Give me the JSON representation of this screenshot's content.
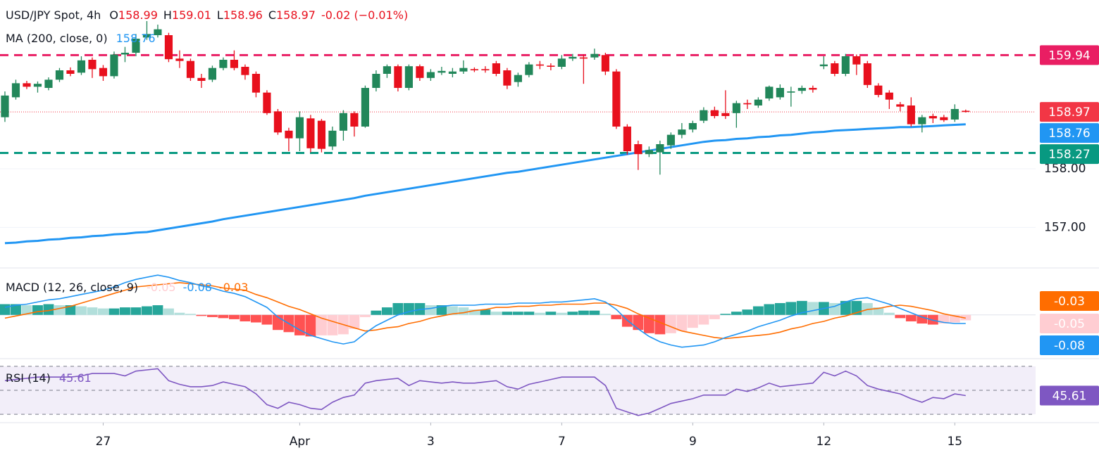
{
  "chart_data": [
    {
      "type": "candlestick",
      "title": "USD/JPY Spot, 4h",
      "ohlc_labels": [
        "O",
        "H",
        "L",
        "C"
      ],
      "change": "-0.02 (−0.01%)",
      "up_color": "#22875a",
      "down_color": "#e8101d",
      "xlim": [
        -0.45,
        94.4
      ],
      "xticks": [
        {
          "value": 9,
          "label": "27"
        },
        {
          "value": 27,
          "label": "Apr"
        },
        {
          "value": 39,
          "label": "3"
        },
        {
          "value": 51,
          "label": "7"
        },
        {
          "value": 63,
          "label": "9"
        },
        {
          "value": 75,
          "label": "12"
        },
        {
          "value": 87,
          "label": "15"
        }
      ],
      "ylim": [
        156.32,
        160.88
      ],
      "yticks": [
        {
          "value": 157,
          "label": "157.00"
        },
        {
          "value": 158,
          "label": "158.00"
        }
      ],
      "grid": true,
      "open": [
        158.88,
        159.22,
        159.46,
        159.4,
        159.38,
        159.52,
        159.68,
        159.64,
        159.86,
        159.72,
        159.58,
        159.95,
        159.98,
        160.24,
        160.28,
        160.28,
        159.88,
        159.84,
        159.55,
        159.52,
        159.72,
        159.86,
        159.74,
        159.62,
        159.3,
        158.98,
        158.65,
        158.52,
        158.86,
        158.82,
        158.38,
        158.65,
        158.95,
        158.72,
        159.38,
        159.62,
        159.75,
        159.38,
        159.75,
        159.55,
        159.64,
        159.62,
        159.66,
        159.7,
        159.7,
        159.8,
        159.68,
        159.48,
        159.6,
        159.78,
        159.76,
        159.74,
        159.88,
        159.9,
        159.9,
        159.94,
        159.66,
        158.72,
        158.42,
        158.25,
        158.28,
        158.4,
        158.58,
        158.67,
        158.82,
        159.0,
        158.95,
        158.95,
        159.12,
        159.08,
        159.2,
        159.22,
        159.3,
        159.33,
        159.38,
        159.75,
        159.8,
        159.62,
        159.92,
        159.8,
        159.42,
        159.3,
        159.1,
        159.08,
        158.76,
        158.9,
        158.88,
        158.84,
        158.99
      ],
      "high": [
        159.32,
        159.52,
        159.5,
        159.49,
        159.56,
        159.72,
        159.73,
        159.92,
        159.9,
        159.77,
        160.0,
        160.08,
        160.3,
        160.52,
        160.46,
        160.32,
        160.02,
        159.88,
        159.62,
        159.76,
        159.9,
        160.02,
        159.78,
        159.66,
        159.34,
        159.02,
        158.7,
        158.98,
        158.92,
        158.85,
        158.72,
        159.0,
        158.98,
        159.42,
        159.68,
        159.78,
        159.78,
        159.78,
        159.78,
        159.7,
        159.74,
        159.72,
        159.85,
        159.73,
        159.75,
        159.84,
        159.72,
        159.64,
        159.82,
        159.84,
        159.8,
        159.94,
        159.96,
        159.95,
        160.05,
        159.98,
        159.7,
        158.76,
        158.48,
        158.38,
        158.48,
        158.62,
        158.78,
        158.82,
        159.05,
        159.06,
        159.34,
        159.16,
        159.18,
        159.22,
        159.42,
        159.44,
        159.4,
        159.42,
        159.42,
        159.92,
        159.84,
        159.96,
        159.95,
        159.84,
        159.46,
        159.34,
        159.14,
        159.22,
        158.92,
        158.94,
        158.92,
        159.1,
        159.01
      ],
      "low": [
        158.8,
        159.18,
        159.36,
        159.3,
        159.34,
        159.48,
        159.58,
        159.6,
        159.55,
        159.5,
        159.54,
        159.82,
        159.92,
        160.2,
        160.24,
        159.82,
        159.72,
        159.5,
        159.38,
        159.48,
        159.68,
        159.68,
        159.52,
        159.22,
        158.92,
        158.58,
        158.3,
        158.3,
        158.28,
        158.28,
        158.32,
        158.48,
        158.55,
        158.7,
        159.32,
        159.55,
        159.32,
        159.34,
        159.5,
        159.5,
        159.6,
        159.56,
        159.62,
        159.65,
        159.64,
        159.58,
        159.36,
        159.4,
        159.56,
        159.7,
        159.68,
        159.7,
        159.84,
        159.45,
        159.86,
        159.6,
        158.68,
        158.24,
        157.98,
        158.2,
        157.9,
        158.34,
        158.52,
        158.62,
        158.78,
        158.86,
        158.85,
        158.7,
        159.02,
        159.04,
        159.16,
        159.18,
        159.06,
        159.28,
        159.3,
        159.7,
        159.58,
        159.58,
        159.6,
        159.38,
        159.22,
        159.02,
        158.98,
        158.72,
        158.62,
        158.78,
        158.8,
        158.8,
        158.96
      ],
      "close": [
        159.25,
        159.46,
        159.4,
        159.45,
        159.52,
        159.68,
        159.62,
        159.85,
        159.7,
        159.58,
        159.95,
        159.98,
        160.22,
        160.3,
        160.38,
        159.87,
        159.84,
        159.55,
        159.5,
        159.72,
        159.86,
        159.72,
        159.6,
        159.3,
        158.95,
        158.62,
        158.52,
        158.88,
        158.35,
        158.34,
        158.65,
        158.95,
        158.72,
        159.38,
        159.62,
        159.75,
        159.38,
        159.75,
        159.55,
        159.65,
        159.67,
        159.66,
        159.72,
        159.68,
        159.68,
        159.62,
        159.42,
        159.6,
        159.78,
        159.76,
        159.74,
        159.88,
        159.91,
        159.88,
        159.96,
        159.66,
        158.72,
        158.3,
        158.25,
        158.32,
        158.42,
        158.58,
        158.67,
        158.78,
        159.0,
        158.9,
        158.9,
        159.12,
        159.1,
        159.18,
        159.4,
        159.38,
        159.32,
        159.38,
        159.35,
        159.78,
        159.62,
        159.92,
        159.78,
        159.43,
        159.26,
        159.18,
        159.06,
        158.76,
        158.88,
        158.86,
        158.83,
        159.02,
        158.97
      ],
      "ma": {
        "name": "MA (200, close, 0)",
        "color": "#2196f3",
        "values": [
          156.73,
          156.74,
          156.76,
          156.77,
          156.79,
          156.8,
          156.82,
          156.83,
          156.85,
          156.86,
          156.88,
          156.89,
          156.91,
          156.92,
          156.95,
          156.98,
          157.01,
          157.04,
          157.07,
          157.1,
          157.14,
          157.17,
          157.2,
          157.23,
          157.26,
          157.29,
          157.32,
          157.35,
          157.38,
          157.41,
          157.44,
          157.47,
          157.5,
          157.54,
          157.57,
          157.6,
          157.63,
          157.66,
          157.69,
          157.72,
          157.75,
          157.78,
          157.81,
          157.84,
          157.87,
          157.9,
          157.93,
          157.95,
          157.98,
          158.01,
          158.04,
          158.07,
          158.1,
          158.13,
          158.16,
          158.19,
          158.22,
          158.25,
          158.28,
          158.31,
          158.34,
          158.37,
          158.4,
          158.43,
          158.46,
          158.48,
          158.49,
          158.51,
          158.52,
          158.54,
          158.55,
          158.57,
          158.58,
          158.6,
          158.62,
          158.63,
          158.65,
          158.66,
          158.67,
          158.68,
          158.69,
          158.7,
          158.71,
          158.71,
          158.72,
          158.73,
          158.74,
          158.75,
          158.76
        ]
      },
      "levels": [
        {
          "value": 159.94,
          "color": "#e91e63",
          "style": "dashed"
        },
        {
          "value": 158.97,
          "color": "#f23645",
          "style": "dotted"
        },
        {
          "value": 158.27,
          "color": "#089981",
          "style": "dashed"
        }
      ]
    },
    {
      "type": "macd",
      "name": "MACD (12, 26, close, 9)",
      "ylim": [
        -0.4,
        0.43
      ],
      "histogram": {
        "colors": {
          "pos_up": "#26a69a",
          "pos_down": "#b2dfdb",
          "neg_down": "#ff5252",
          "neg_up": "#ffcdd2"
        },
        "label_color": "#ffcdd2",
        "label_text_color": "#131722",
        "values": [
          0.1,
          0.1,
          0.09,
          0.09,
          0.1,
          0.09,
          0.09,
          0.08,
          0.07,
          0.06,
          0.06,
          0.07,
          0.07,
          0.08,
          0.09,
          0.06,
          0.02,
          0.01,
          -0.01,
          -0.02,
          -0.03,
          -0.04,
          -0.06,
          -0.07,
          -0.09,
          -0.14,
          -0.16,
          -0.19,
          -0.2,
          -0.19,
          -0.19,
          -0.18,
          -0.13,
          -0.02,
          0.04,
          0.07,
          0.11,
          0.11,
          0.11,
          0.09,
          0.09,
          0.08,
          0.07,
          0.05,
          0.05,
          0.03,
          0.03,
          0.03,
          0.03,
          0.02,
          0.03,
          0.02,
          0.03,
          0.04,
          0.04,
          0.01,
          -0.04,
          -0.11,
          -0.14,
          -0.17,
          -0.18,
          -0.17,
          -0.15,
          -0.12,
          -0.09,
          -0.04,
          0.01,
          0.03,
          0.05,
          0.08,
          0.1,
          0.11,
          0.12,
          0.13,
          0.12,
          0.12,
          0.11,
          0.13,
          0.13,
          0.11,
          0.07,
          0.02,
          -0.03,
          -0.06,
          -0.08,
          -0.09,
          -0.08,
          -0.07,
          -0.05
        ]
      },
      "macd": {
        "color": "#2196f3",
        "values": [
          0.07,
          0.09,
          0.1,
          0.12,
          0.14,
          0.15,
          0.17,
          0.19,
          0.21,
          0.23,
          0.26,
          0.3,
          0.33,
          0.35,
          0.37,
          0.35,
          0.32,
          0.3,
          0.27,
          0.25,
          0.22,
          0.2,
          0.17,
          0.12,
          0.07,
          -0.02,
          -0.08,
          -0.14,
          -0.19,
          -0.22,
          -0.25,
          -0.27,
          -0.25,
          -0.17,
          -0.1,
          -0.05,
          0.0,
          0.03,
          0.05,
          0.06,
          0.08,
          0.09,
          0.09,
          0.09,
          0.1,
          0.1,
          0.1,
          0.11,
          0.11,
          0.11,
          0.12,
          0.12,
          0.13,
          0.14,
          0.15,
          0.12,
          0.05,
          -0.05,
          -0.13,
          -0.2,
          -0.25,
          -0.28,
          -0.3,
          -0.29,
          -0.28,
          -0.25,
          -0.21,
          -0.18,
          -0.15,
          -0.11,
          -0.08,
          -0.05,
          -0.01,
          0.02,
          0.04,
          0.06,
          0.08,
          0.12,
          0.15,
          0.16,
          0.13,
          0.1,
          0.06,
          0.02,
          -0.02,
          -0.05,
          -0.07,
          -0.08,
          -0.08
        ]
      },
      "signal": {
        "color": "#ff6d00",
        "values": [
          -0.03,
          -0.01,
          0.01,
          0.03,
          0.04,
          0.06,
          0.08,
          0.11,
          0.14,
          0.17,
          0.2,
          0.23,
          0.26,
          0.27,
          0.28,
          0.29,
          0.3,
          0.29,
          0.28,
          0.27,
          0.25,
          0.24,
          0.23,
          0.19,
          0.16,
          0.12,
          0.08,
          0.05,
          0.01,
          -0.03,
          -0.06,
          -0.09,
          -0.12,
          -0.15,
          -0.14,
          -0.12,
          -0.11,
          -0.08,
          -0.06,
          -0.03,
          -0.01,
          0.01,
          0.02,
          0.04,
          0.05,
          0.07,
          0.07,
          0.08,
          0.08,
          0.09,
          0.09,
          0.1,
          0.1,
          0.1,
          0.11,
          0.11,
          0.09,
          0.06,
          0.01,
          -0.03,
          -0.07,
          -0.11,
          -0.15,
          -0.17,
          -0.19,
          -0.21,
          -0.22,
          -0.21,
          -0.2,
          -0.19,
          -0.18,
          -0.16,
          -0.13,
          -0.11,
          -0.08,
          -0.06,
          -0.03,
          -0.01,
          0.02,
          0.05,
          0.06,
          0.08,
          0.09,
          0.08,
          0.06,
          0.04,
          0.01,
          -0.01,
          -0.03
        ]
      }
    },
    {
      "type": "rsi",
      "name": "RSI (14)",
      "color": "#7e57c2",
      "ylim": [
        23.6,
        75.8
      ],
      "bands": [
        70,
        50,
        30
      ],
      "values": [
        58,
        59,
        60,
        61,
        61,
        61,
        61,
        62,
        64,
        64,
        64,
        62,
        66,
        67,
        68,
        58,
        55,
        53,
        53,
        54,
        57,
        55,
        53,
        47,
        38,
        35,
        40,
        38,
        35,
        34,
        40,
        44,
        46,
        56,
        58,
        59,
        60,
        54,
        58,
        57,
        56,
        57,
        56,
        56,
        57,
        58,
        53,
        51,
        55,
        57,
        59,
        61,
        61,
        61,
        61,
        54,
        35,
        32,
        29,
        31,
        35,
        39,
        41,
        43,
        46,
        46,
        46,
        51,
        49,
        52,
        56,
        53,
        54,
        55,
        56,
        65,
        62,
        66,
        62,
        54,
        51,
        49,
        47,
        43,
        40,
        44,
        43,
        47,
        45.61
      ]
    }
  ]
}
